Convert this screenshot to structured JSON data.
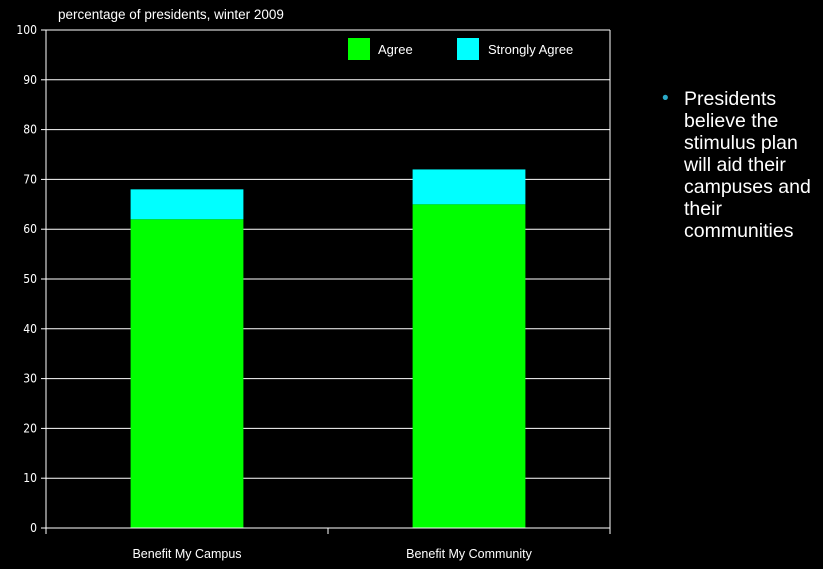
{
  "chart_data": {
    "type": "bar",
    "stacked": true,
    "title": "",
    "ylabel": "percentage of presidents, winter 2009",
    "xlabel": "",
    "categories": [
      "Benefit My Campus",
      "Benefit My Community"
    ],
    "series": [
      {
        "name": "Agree",
        "values": [
          62,
          65
        ],
        "color": "#00ff00"
      },
      {
        "name": "Strongly Agree",
        "values": [
          6,
          7
        ],
        "color": "#00ffff"
      }
    ],
    "ylim": [
      0,
      100
    ],
    "yticks": [
      "0",
      "10",
      "20",
      "30",
      "40",
      "50",
      "60",
      "70",
      "80",
      "90",
      "100"
    ],
    "grid": true,
    "legend_position": "top-right"
  },
  "sidebar": {
    "bullet_icon": "bullet-dot",
    "text": "Presidents believe the stimulus plan will aid their campuses and their communities"
  }
}
